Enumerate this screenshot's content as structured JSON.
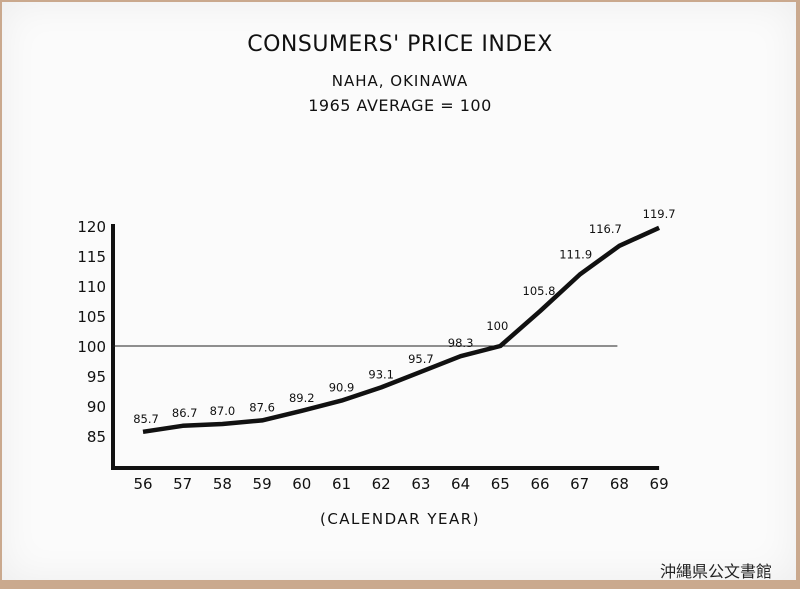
{
  "chart_data": {
    "type": "line",
    "title": "CONSUMERS' PRICE INDEX",
    "subtitle": "NAHA, OKINAWA",
    "subtitle2": "1965 AVERAGE = 100",
    "xlabel": "(CALENDAR YEAR)",
    "ylabel": "",
    "x": [
      "56",
      "57",
      "58",
      "59",
      "60",
      "61",
      "62",
      "63",
      "64",
      "65",
      "66",
      "67",
      "68",
      "69"
    ],
    "values": [
      85.7,
      86.7,
      87.0,
      87.6,
      89.2,
      90.9,
      93.1,
      95.7,
      98.3,
      100,
      105.8,
      111.9,
      116.7,
      119.7
    ],
    "data_labels": [
      "85.7",
      "86.7",
      "87.0",
      "87.6",
      "89.2",
      "90.9",
      "93.1",
      "95.7",
      "98.3",
      "100",
      "105.8",
      "111.9",
      "116.7",
      "119.7"
    ],
    "yticks": [
      "85",
      "90",
      "95",
      "100",
      "105",
      "110",
      "115",
      "120"
    ],
    "ylim": [
      80,
      120
    ],
    "reference_line": 100,
    "grid": false,
    "legend": "none",
    "line_color": "#111111"
  },
  "archive_stamp": "沖縄県公文書館"
}
